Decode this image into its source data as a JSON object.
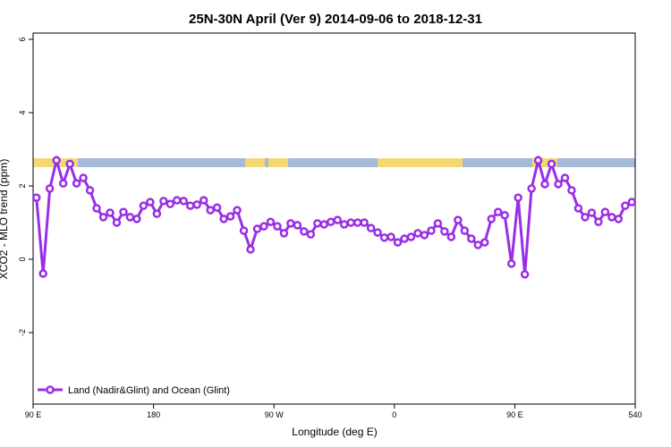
{
  "chart_data": {
    "type": "line",
    "title": "25N-30N April (Ver 9)   2014-09-06 to 2018-12-31",
    "x_label": "Longitude (deg E)",
    "y_label": "XCO2 - MLO trend (ppm)",
    "x": [
      92.5,
      97.5,
      102.5,
      107.5,
      112.5,
      117.5,
      122.5,
      127.5,
      132.5,
      137.5,
      142.5,
      147.5,
      152.5,
      157.5,
      162.5,
      167.5,
      172.5,
      177.5,
      182.5,
      187.5,
      192.5,
      197.5,
      202.5,
      207.5,
      212.5,
      217.5,
      222.5,
      227.5,
      232.5,
      237.5,
      242.5,
      247.5,
      252.5,
      257.5,
      262.5,
      267.5,
      272.5,
      277.5,
      282.5,
      287.5,
      292.5,
      297.5,
      302.5,
      307.5,
      312.5,
      317.5,
      322.5,
      327.5,
      332.5,
      337.5,
      342.5,
      347.5,
      352.5,
      357.5,
      362.5,
      367.5,
      372.5,
      377.5,
      382.5,
      387.5,
      392.5,
      397.5,
      402.5,
      407.5,
      412.5,
      417.5,
      422.5,
      427.5,
      432.5,
      437.5,
      442.5,
      447.5,
      452.5,
      457.5,
      462.5,
      467.5,
      472.5,
      477.5,
      482.5,
      487.5,
      492.5,
      497.5,
      502.5,
      507.5,
      512.5,
      517.5,
      522.5,
      527.5,
      532.5,
      537.5
    ],
    "series": [
      {
        "name": "Land (Nadir&Glint) and Ocean (Glint)",
        "color": "#9a2ee6",
        "values": [
          1.68,
          -0.39,
          1.93,
          2.7,
          2.07,
          2.6,
          2.07,
          2.22,
          1.88,
          1.39,
          1.15,
          1.27,
          1.0,
          1.29,
          1.15,
          1.1,
          1.46,
          1.56,
          1.24,
          1.59,
          1.51,
          1.61,
          1.59,
          1.46,
          1.49,
          1.61,
          1.34,
          1.41,
          1.1,
          1.17,
          1.34,
          0.78,
          0.27,
          0.83,
          0.9,
          1.02,
          0.9,
          0.71,
          0.98,
          0.93,
          0.76,
          0.68,
          0.98,
          0.95,
          1.02,
          1.07,
          0.95,
          1.0,
          1.0,
          1.0,
          0.85,
          0.73,
          0.59,
          0.61,
          0.46,
          0.56,
          0.61,
          0.71,
          0.66,
          0.78,
          0.98,
          0.76,
          0.61,
          1.07,
          0.78,
          0.56,
          0.39,
          0.46,
          1.1,
          1.29,
          1.2,
          -0.12,
          1.68,
          -0.41,
          1.93,
          2.7,
          2.05,
          2.6,
          2.05,
          2.22,
          1.88,
          1.39,
          1.15,
          1.27,
          1.02,
          1.29,
          1.15,
          1.1,
          1.46,
          1.56
        ]
      }
    ],
    "xlim": [
      90,
      540
    ],
    "xticks": [
      {
        "value": 90,
        "label": "90 E"
      },
      180,
      {
        "value": 270,
        "label": "90 W"
      },
      {
        "value": 360,
        "label": "0"
      },
      {
        "value": 450,
        "label": "90 E"
      },
      540
    ],
    "ylim": [
      -3.95,
      6.17
    ],
    "yticks": [
      -2,
      0,
      2,
      4,
      6
    ],
    "legend": "bottom-left"
  }
}
